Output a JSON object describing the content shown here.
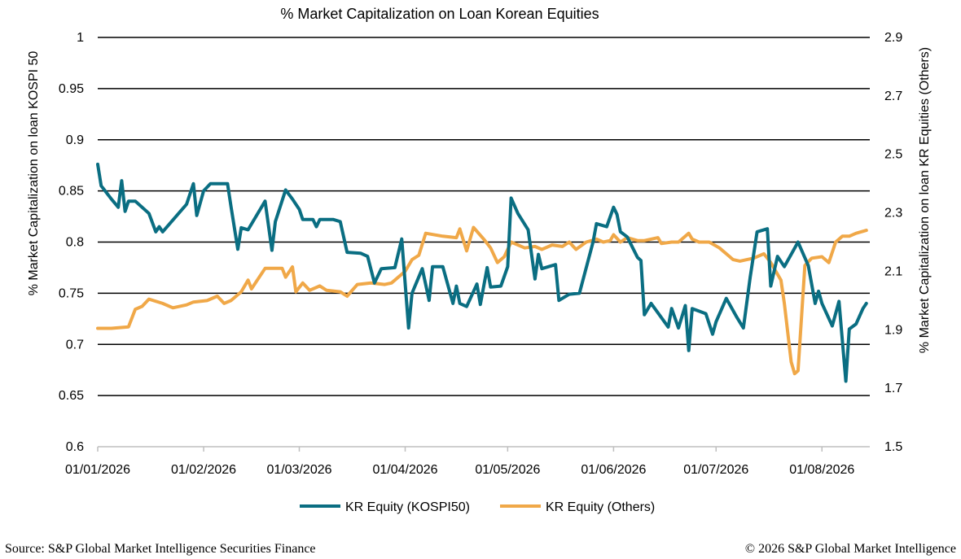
{
  "chart_data": {
    "type": "line",
    "title": "% Market Capitalization on Loan Korean Equities",
    "ylabel_left": "% Market Capitalization on loan KOSPI 50",
    "ylabel_right": "% Market Capitalization on loan KR Equities (Others)",
    "xlabel": "",
    "x_ticks": [
      "01/01/2026",
      "01/02/2026",
      "01/03/2026",
      "01/04/2026",
      "01/05/2026",
      "01/06/2026",
      "01/07/2026",
      "01/08/2026"
    ],
    "x_range": [
      "2026-01-01",
      "2026-08-15"
    ],
    "ylim_left": [
      0.6,
      1.0
    ],
    "yticks_left": [
      "0.6",
      "0.65",
      "0.7",
      "0.75",
      "0.8",
      "0.85",
      "0.9",
      "0.95",
      "1"
    ],
    "ylim_right": [
      1.5,
      2.9
    ],
    "yticks_right": [
      "1.5",
      "1.7",
      "1.9",
      "2.1",
      "2.3",
      "2.5",
      "2.7",
      "2.9"
    ],
    "grid": "horizontal",
    "legend_position": "bottom",
    "series": [
      {
        "name": "KR Equity (KOSPI50)",
        "axis": "left",
        "color": "#0a6e82",
        "points": [
          [
            "2026-01-01",
            0.876
          ],
          [
            "2026-01-02",
            0.855
          ],
          [
            "2026-01-05",
            0.842
          ],
          [
            "2026-01-07",
            0.834
          ],
          [
            "2026-01-08",
            0.86
          ],
          [
            "2026-01-09",
            0.83
          ],
          [
            "2026-01-10",
            0.84
          ],
          [
            "2026-01-12",
            0.84
          ],
          [
            "2026-01-16",
            0.828
          ],
          [
            "2026-01-18",
            0.81
          ],
          [
            "2026-01-19",
            0.815
          ],
          [
            "2026-01-20",
            0.81
          ],
          [
            "2026-01-27",
            0.837
          ],
          [
            "2026-01-29",
            0.857
          ],
          [
            "2026-01-30",
            0.826
          ],
          [
            "2026-02-01",
            0.85
          ],
          [
            "2026-02-03",
            0.857
          ],
          [
            "2026-02-08",
            0.857
          ],
          [
            "2026-02-09",
            0.835
          ],
          [
            "2026-02-11",
            0.793
          ],
          [
            "2026-02-12",
            0.814
          ],
          [
            "2026-02-14",
            0.812
          ],
          [
            "2026-02-19",
            0.84
          ],
          [
            "2026-02-21",
            0.792
          ],
          [
            "2026-02-22",
            0.82
          ],
          [
            "2026-02-25",
            0.851
          ],
          [
            "2026-02-27",
            0.842
          ],
          [
            "2026-03-01",
            0.832
          ],
          [
            "2026-03-02",
            0.822
          ],
          [
            "2026-03-05",
            0.822
          ],
          [
            "2026-03-06",
            0.815
          ],
          [
            "2026-03-07",
            0.822
          ],
          [
            "2026-03-11",
            0.822
          ],
          [
            "2026-03-13",
            0.82
          ],
          [
            "2026-03-15",
            0.79
          ],
          [
            "2026-03-19",
            0.789
          ],
          [
            "2026-03-21",
            0.786
          ],
          [
            "2026-03-23",
            0.76
          ],
          [
            "2026-03-25",
            0.774
          ],
          [
            "2026-03-29",
            0.775
          ],
          [
            "2026-03-31",
            0.803
          ],
          [
            "2026-04-02",
            0.716
          ],
          [
            "2026-04-03",
            0.75
          ],
          [
            "2026-04-06",
            0.774
          ],
          [
            "2026-04-08",
            0.743
          ],
          [
            "2026-04-09",
            0.776
          ],
          [
            "2026-04-12",
            0.776
          ],
          [
            "2026-04-15",
            0.74
          ],
          [
            "2026-04-16",
            0.757
          ],
          [
            "2026-04-17",
            0.74
          ],
          [
            "2026-04-19",
            0.737
          ],
          [
            "2026-04-22",
            0.759
          ],
          [
            "2026-04-23",
            0.739
          ],
          [
            "2026-04-25",
            0.775
          ],
          [
            "2026-04-26",
            0.756
          ],
          [
            "2026-04-29",
            0.757
          ],
          [
            "2026-05-01",
            0.776
          ],
          [
            "2026-05-02",
            0.843
          ],
          [
            "2026-05-04",
            0.828
          ],
          [
            "2026-05-07",
            0.812
          ],
          [
            "2026-05-09",
            0.764
          ],
          [
            "2026-05-10",
            0.788
          ],
          [
            "2026-05-11",
            0.774
          ],
          [
            "2026-05-15",
            0.778
          ],
          [
            "2026-05-16",
            0.743
          ],
          [
            "2026-05-19",
            0.749
          ],
          [
            "2026-05-22",
            0.75
          ],
          [
            "2026-05-26",
            0.8
          ],
          [
            "2026-05-27",
            0.818
          ],
          [
            "2026-05-30",
            0.815
          ],
          [
            "2026-06-01",
            0.834
          ],
          [
            "2026-06-02",
            0.827
          ],
          [
            "2026-06-03",
            0.81
          ],
          [
            "2026-06-05",
            0.805
          ],
          [
            "2026-06-08",
            0.785
          ],
          [
            "2026-06-09",
            0.782
          ],
          [
            "2026-06-10",
            0.729
          ],
          [
            "2026-06-12",
            0.74
          ],
          [
            "2026-06-17",
            0.717
          ],
          [
            "2026-06-18",
            0.735
          ],
          [
            "2026-06-20",
            0.716
          ],
          [
            "2026-06-22",
            0.738
          ],
          [
            "2026-06-23",
            0.694
          ],
          [
            "2026-06-24",
            0.735
          ],
          [
            "2026-06-28",
            0.73
          ],
          [
            "2026-06-30",
            0.71
          ],
          [
            "2026-07-01",
            0.722
          ],
          [
            "2026-07-04",
            0.745
          ],
          [
            "2026-07-07",
            0.727
          ],
          [
            "2026-07-09",
            0.716
          ],
          [
            "2026-07-11",
            0.766
          ],
          [
            "2026-07-13",
            0.81
          ],
          [
            "2026-07-16",
            0.813
          ],
          [
            "2026-07-17",
            0.757
          ],
          [
            "2026-07-19",
            0.786
          ],
          [
            "2026-07-21",
            0.776
          ],
          [
            "2026-07-25",
            0.8
          ],
          [
            "2026-07-28",
            0.777
          ],
          [
            "2026-07-30",
            0.74
          ],
          [
            "2026-07-31",
            0.752
          ],
          [
            "2026-08-01",
            0.74
          ],
          [
            "2026-08-04",
            0.718
          ],
          [
            "2026-08-06",
            0.742
          ],
          [
            "2026-08-08",
            0.664
          ],
          [
            "2026-08-09",
            0.715
          ],
          [
            "2026-08-11",
            0.72
          ],
          [
            "2026-08-13",
            0.735
          ],
          [
            "2026-08-14",
            0.74
          ]
        ]
      },
      {
        "name": "KR Equity (Others)",
        "axis": "right",
        "color": "#f0a848",
        "points": [
          [
            "2026-01-01",
            1.905
          ],
          [
            "2026-01-05",
            1.905
          ],
          [
            "2026-01-10",
            1.91
          ],
          [
            "2026-01-12",
            1.97
          ],
          [
            "2026-01-14",
            1.98
          ],
          [
            "2026-01-16",
            2.005
          ],
          [
            "2026-01-20",
            1.99
          ],
          [
            "2026-01-23",
            1.975
          ],
          [
            "2026-01-27",
            1.985
          ],
          [
            "2026-01-29",
            1.995
          ],
          [
            "2026-02-02",
            2.0
          ],
          [
            "2026-02-05",
            2.015
          ],
          [
            "2026-02-07",
            1.99
          ],
          [
            "2026-02-09",
            2.0
          ],
          [
            "2026-02-12",
            2.03
          ],
          [
            "2026-02-14",
            2.07
          ],
          [
            "2026-02-15",
            2.04
          ],
          [
            "2026-02-19",
            2.11
          ],
          [
            "2026-02-24",
            2.11
          ],
          [
            "2026-02-25",
            2.08
          ],
          [
            "2026-02-27",
            2.115
          ],
          [
            "2026-02-28",
            2.03
          ],
          [
            "2026-03-02",
            2.06
          ],
          [
            "2026-03-04",
            2.035
          ],
          [
            "2026-03-07",
            2.05
          ],
          [
            "2026-03-09",
            2.035
          ],
          [
            "2026-03-13",
            2.03
          ],
          [
            "2026-03-15",
            2.015
          ],
          [
            "2026-03-18",
            2.055
          ],
          [
            "2026-03-22",
            2.06
          ],
          [
            "2026-03-26",
            2.055
          ],
          [
            "2026-03-28",
            2.06
          ],
          [
            "2026-04-01",
            2.1
          ],
          [
            "2026-04-03",
            2.14
          ],
          [
            "2026-04-05",
            2.155
          ],
          [
            "2026-04-07",
            2.23
          ],
          [
            "2026-04-12",
            2.22
          ],
          [
            "2026-04-16",
            2.215
          ],
          [
            "2026-04-17",
            2.245
          ],
          [
            "2026-04-19",
            2.17
          ],
          [
            "2026-04-21",
            2.25
          ],
          [
            "2026-04-24",
            2.21
          ],
          [
            "2026-04-26",
            2.18
          ],
          [
            "2026-04-28",
            2.13
          ],
          [
            "2026-04-30",
            2.15
          ],
          [
            "2026-05-02",
            2.2
          ],
          [
            "2026-05-04",
            2.19
          ],
          [
            "2026-05-06",
            2.18
          ],
          [
            "2026-05-09",
            2.185
          ],
          [
            "2026-05-11",
            2.175
          ],
          [
            "2026-05-14",
            2.19
          ],
          [
            "2026-05-17",
            2.185
          ],
          [
            "2026-05-19",
            2.2
          ],
          [
            "2026-05-21",
            2.175
          ],
          [
            "2026-05-24",
            2.2
          ],
          [
            "2026-05-27",
            2.21
          ],
          [
            "2026-05-29",
            2.2
          ],
          [
            "2026-05-31",
            2.205
          ],
          [
            "2026-06-01",
            2.225
          ],
          [
            "2026-06-03",
            2.2
          ],
          [
            "2026-06-05",
            2.215
          ],
          [
            "2026-06-08",
            2.205
          ],
          [
            "2026-06-10",
            2.205
          ],
          [
            "2026-06-14",
            2.215
          ],
          [
            "2026-06-15",
            2.195
          ],
          [
            "2026-06-18",
            2.2
          ],
          [
            "2026-06-20",
            2.2
          ],
          [
            "2026-06-23",
            2.23
          ],
          [
            "2026-06-24",
            2.21
          ],
          [
            "2026-06-26",
            2.2
          ],
          [
            "2026-06-29",
            2.2
          ],
          [
            "2026-07-02",
            2.18
          ],
          [
            "2026-07-04",
            2.16
          ],
          [
            "2026-07-06",
            2.14
          ],
          [
            "2026-07-08",
            2.135
          ],
          [
            "2026-07-10",
            2.14
          ],
          [
            "2026-07-12",
            2.145
          ],
          [
            "2026-07-15",
            2.16
          ],
          [
            "2026-07-17",
            2.13
          ],
          [
            "2026-07-20",
            2.07
          ],
          [
            "2026-07-21",
            1.99
          ],
          [
            "2026-07-23",
            1.79
          ],
          [
            "2026-07-24",
            1.75
          ],
          [
            "2026-07-25",
            1.76
          ],
          [
            "2026-07-27",
            2.12
          ],
          [
            "2026-07-29",
            2.145
          ],
          [
            "2026-08-01",
            2.15
          ],
          [
            "2026-08-03",
            2.13
          ],
          [
            "2026-08-05",
            2.2
          ],
          [
            "2026-08-07",
            2.22
          ],
          [
            "2026-08-09",
            2.22
          ],
          [
            "2026-08-11",
            2.23
          ],
          [
            "2026-08-14",
            2.24
          ]
        ]
      }
    ]
  },
  "legend": {
    "items": [
      "KR Equity (KOSPI50)",
      "KR Equity (Others)"
    ]
  },
  "footer": {
    "source": "Source: S&P Global Market Intelligence Securities Finance",
    "copyright": "© 2026 S&P Global Market Intelligence"
  },
  "colors": {
    "kospi50": "#0a6e82",
    "others": "#f0a848",
    "grid": "#000000"
  }
}
